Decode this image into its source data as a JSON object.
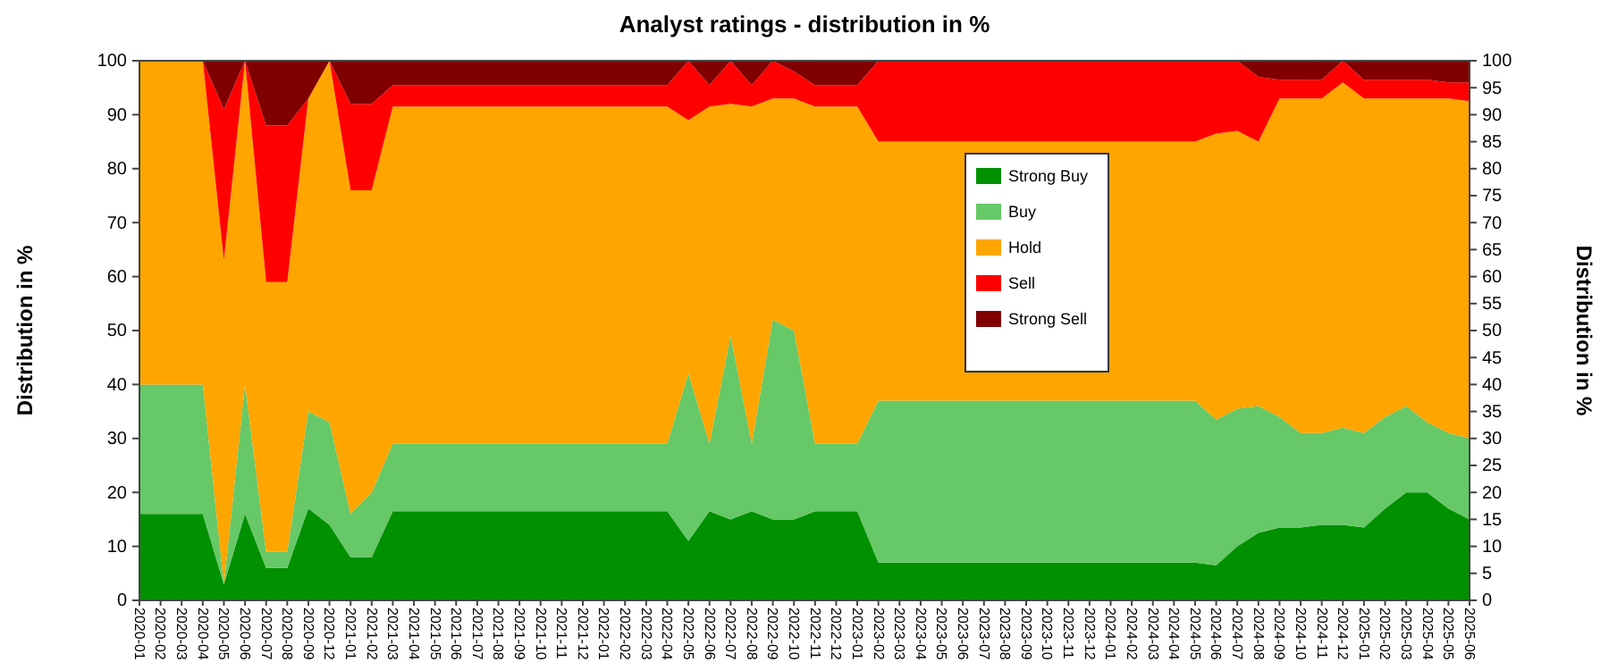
{
  "chart_data": {
    "type": "area",
    "stacked": true,
    "title": "Analyst ratings - distribution in %",
    "ylabel": "Distribution in %",
    "y2label": "Distribution in %",
    "categories": [
      "2020-01",
      "2020-02",
      "2020-03",
      "2020-04",
      "2020-05",
      "2020-06",
      "2020-07",
      "2020-08",
      "2020-09",
      "2020-12",
      "2021-01",
      "2021-02",
      "2021-03",
      "2021-04",
      "2021-05",
      "2021-06",
      "2021-07",
      "2021-08",
      "2021-09",
      "2021-10",
      "2021-11",
      "2021-12",
      "2022-01",
      "2022-02",
      "2022-03",
      "2022-04",
      "2022-05",
      "2022-06",
      "2022-07",
      "2022-08",
      "2022-09",
      "2022-10",
      "2022-11",
      "2022-12",
      "2023-01",
      "2023-02",
      "2023-03",
      "2023-04",
      "2023-05",
      "2023-06",
      "2023-07",
      "2023-08",
      "2023-09",
      "2023-10",
      "2023-11",
      "2023-12",
      "2024-01",
      "2024-02",
      "2024-03",
      "2024-04",
      "2024-05",
      "2024-06",
      "2024-07",
      "2024-08",
      "2024-09",
      "2024-10",
      "2024-11",
      "2024-12",
      "2025-01",
      "2025-02",
      "2025-03",
      "2025-04",
      "2025-05",
      "2025-06"
    ],
    "series": [
      {
        "name": "Strong Buy",
        "color": "#009000",
        "values": [
          16,
          16,
          16,
          16,
          3,
          16,
          6,
          6,
          17,
          14,
          8,
          8,
          16.5,
          16.5,
          16.5,
          16.5,
          16.5,
          16.5,
          16.5,
          16.5,
          16.5,
          16.5,
          16.5,
          16.5,
          16.5,
          16.5,
          11,
          16.5,
          15,
          16.5,
          15,
          15,
          16.5,
          16.5,
          16.5,
          7,
          7,
          7,
          7,
          7,
          7,
          7,
          7,
          7,
          7,
          7,
          7,
          7,
          7,
          7,
          7,
          6.5,
          10,
          12.5,
          13.5,
          13.5,
          14,
          14,
          13.5,
          17,
          20,
          20,
          17,
          15
        ]
      },
      {
        "name": "Buy",
        "color": "#66c866",
        "values": [
          24,
          24,
          24,
          24,
          0,
          24,
          3,
          3,
          18,
          19,
          8,
          12,
          12.5,
          12.5,
          12.5,
          12.5,
          12.5,
          12.5,
          12.5,
          12.5,
          12.5,
          12.5,
          12.5,
          12.5,
          12.5,
          12.5,
          31,
          12.5,
          34,
          12.5,
          37,
          35,
          12.5,
          12.5,
          12.5,
          30,
          30,
          30,
          30,
          30,
          30,
          30,
          30,
          30,
          30,
          30,
          30,
          30,
          30,
          30,
          30,
          27,
          25.5,
          23.5,
          20.5,
          17.5,
          17,
          18,
          17.5,
          17,
          16,
          13,
          14,
          15
        ]
      },
      {
        "name": "Hold",
        "color": "#ffa500",
        "values": [
          60,
          60,
          60,
          60,
          60,
          60,
          50,
          50,
          58,
          67,
          60,
          56,
          62.5,
          62.5,
          62.5,
          62.5,
          62.5,
          62.5,
          62.5,
          62.5,
          62.5,
          62.5,
          62.5,
          62.5,
          62.5,
          62.5,
          47,
          62.5,
          43,
          62.5,
          41,
          43,
          62.5,
          62.5,
          62.5,
          48,
          48,
          48,
          48,
          48,
          48,
          48,
          48,
          48,
          48,
          48,
          48,
          48,
          48,
          48,
          48,
          53,
          51.5,
          49,
          59,
          62,
          62,
          64,
          62,
          59,
          57,
          60,
          62,
          62.5
        ]
      },
      {
        "name": "Sell",
        "color": "#ff0000",
        "values": [
          0,
          0,
          0,
          0,
          28,
          0,
          29,
          29,
          0,
          0,
          16,
          16,
          4,
          4,
          4,
          4,
          4,
          4,
          4,
          4,
          4,
          4,
          4,
          4,
          4,
          4,
          11,
          4,
          8,
          4,
          7,
          5,
          4,
          4,
          4,
          15,
          15,
          15,
          15,
          15,
          15,
          15,
          15,
          15,
          15,
          15,
          15,
          15,
          15,
          15,
          15,
          13.5,
          13,
          12,
          3.5,
          3.5,
          3.5,
          4,
          3.5,
          3.5,
          3.5,
          3.5,
          3,
          3.5
        ]
      },
      {
        "name": "Strong Sell",
        "color": "#800000",
        "values": [
          0,
          0,
          0,
          0,
          9,
          0,
          12,
          12,
          7,
          0,
          8,
          8,
          4.5,
          4.5,
          4.5,
          4.5,
          4.5,
          4.5,
          4.5,
          4.5,
          4.5,
          4.5,
          4.5,
          4.5,
          4.5,
          4.5,
          0,
          4.5,
          0,
          4.5,
          0,
          2,
          4.5,
          4.5,
          4.5,
          0,
          0,
          0,
          0,
          0,
          0,
          0,
          0,
          0,
          0,
          0,
          0,
          0,
          0,
          0,
          0,
          0,
          0,
          3,
          3.5,
          3.5,
          3.5,
          0,
          3.5,
          3.5,
          3.5,
          3.5,
          4,
          4
        ]
      }
    ],
    "ylim": [
      0,
      100
    ],
    "yticks": [
      0,
      10,
      20,
      30,
      40,
      50,
      60,
      70,
      80,
      90,
      100
    ],
    "y2lim": [
      0,
      100
    ],
    "y2ticks": [
      0,
      5,
      10,
      15,
      20,
      25,
      30,
      35,
      40,
      45,
      50,
      55,
      60,
      65,
      70,
      75,
      80,
      85,
      90,
      95,
      100
    ],
    "grid": "y",
    "legend": "top"
  }
}
